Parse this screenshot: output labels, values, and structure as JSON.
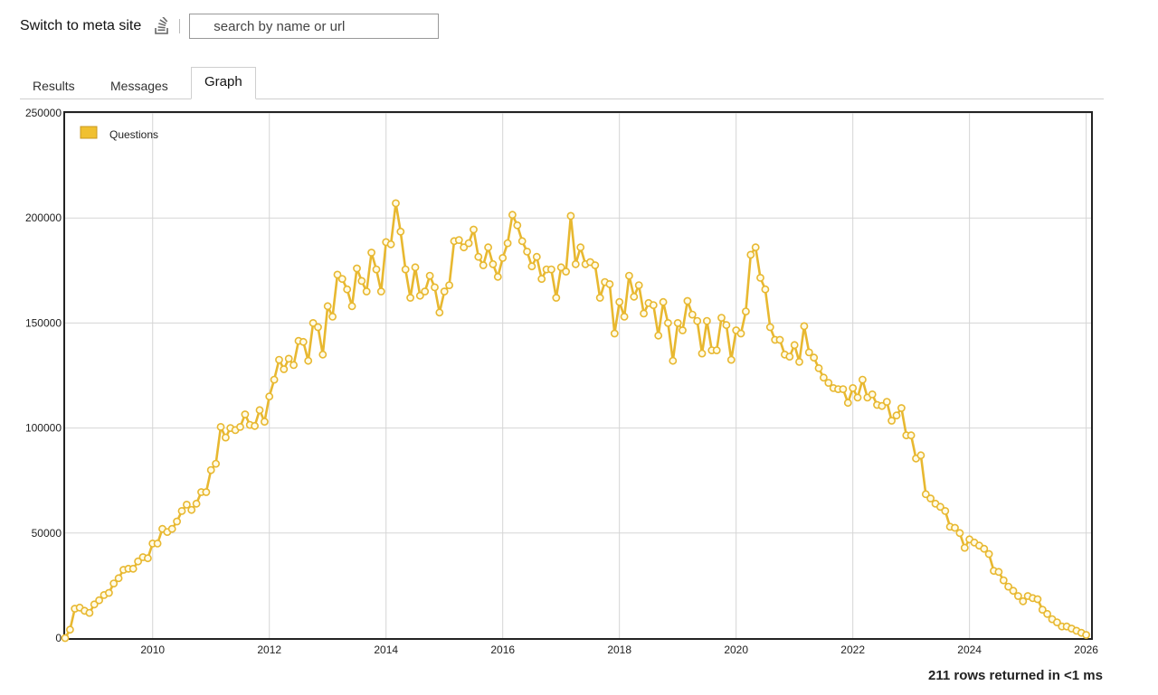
{
  "header": {
    "meta_link": "Switch to meta site",
    "search_placeholder": "search by name or url"
  },
  "tabs": [
    {
      "label": "Results"
    },
    {
      "label": "Messages"
    },
    {
      "label": "Graph",
      "active": true
    }
  ],
  "footer": {
    "status": "211 rows returned in <1 ms"
  },
  "colors": {
    "series": "#e8b830",
    "grid": "#d8d8d8",
    "frame": "#222222"
  },
  "chart_data": {
    "type": "line",
    "title": "",
    "xlabel": "",
    "ylabel": "",
    "x_ticks": [
      "2010",
      "2012",
      "2014",
      "2016",
      "2018",
      "2020",
      "2022",
      "2024",
      "2026"
    ],
    "y_ticks": [
      "0",
      "50000",
      "100000",
      "150000",
      "200000",
      "250000"
    ],
    "xlim": [
      "2008-07",
      "2026-02"
    ],
    "ylim": [
      0,
      250000
    ],
    "grid": true,
    "legend": "top-left",
    "series": [
      {
        "name": "Questions",
        "x": [
          "2008-07",
          "2008-08",
          "2008-09",
          "2008-10",
          "2008-11",
          "2008-12",
          "2009-01",
          "2009-02",
          "2009-03",
          "2009-04",
          "2009-05",
          "2009-06",
          "2009-07",
          "2009-08",
          "2009-09",
          "2009-10",
          "2009-11",
          "2009-12",
          "2010-01",
          "2010-02",
          "2010-03",
          "2010-04",
          "2010-05",
          "2010-06",
          "2010-07",
          "2010-08",
          "2010-09",
          "2010-10",
          "2010-11",
          "2010-12",
          "2011-01",
          "2011-02",
          "2011-03",
          "2011-04",
          "2011-05",
          "2011-06",
          "2011-07",
          "2011-08",
          "2011-09",
          "2011-10",
          "2011-11",
          "2011-12",
          "2012-01",
          "2012-02",
          "2012-03",
          "2012-04",
          "2012-05",
          "2012-06",
          "2012-07",
          "2012-08",
          "2012-09",
          "2012-10",
          "2012-11",
          "2012-12",
          "2013-01",
          "2013-02",
          "2013-03",
          "2013-04",
          "2013-05",
          "2013-06",
          "2013-07",
          "2013-08",
          "2013-09",
          "2013-10",
          "2013-11",
          "2013-12",
          "2014-01",
          "2014-02",
          "2014-03",
          "2014-04",
          "2014-05",
          "2014-06",
          "2014-07",
          "2014-08",
          "2014-09",
          "2014-10",
          "2014-11",
          "2014-12",
          "2015-01",
          "2015-02",
          "2015-03",
          "2015-04",
          "2015-05",
          "2015-06",
          "2015-07",
          "2015-08",
          "2015-09",
          "2015-10",
          "2015-11",
          "2015-12",
          "2016-01",
          "2016-02",
          "2016-03",
          "2016-04",
          "2016-05",
          "2016-06",
          "2016-07",
          "2016-08",
          "2016-09",
          "2016-10",
          "2016-11",
          "2016-12",
          "2017-01",
          "2017-02",
          "2017-03",
          "2017-04",
          "2017-05",
          "2017-06",
          "2017-07",
          "2017-08",
          "2017-09",
          "2017-10",
          "2017-11",
          "2017-12",
          "2018-01",
          "2018-02",
          "2018-03",
          "2018-04",
          "2018-05",
          "2018-06",
          "2018-07",
          "2018-08",
          "2018-09",
          "2018-10",
          "2018-11",
          "2018-12",
          "2019-01",
          "2019-02",
          "2019-03",
          "2019-04",
          "2019-05",
          "2019-06",
          "2019-07",
          "2019-08",
          "2019-09",
          "2019-10",
          "2019-11",
          "2019-12",
          "2020-01",
          "2020-02",
          "2020-03",
          "2020-04",
          "2020-05",
          "2020-06",
          "2020-07",
          "2020-08",
          "2020-09",
          "2020-10",
          "2020-11",
          "2020-12",
          "2021-01",
          "2021-02",
          "2021-03",
          "2021-04",
          "2021-05",
          "2021-06",
          "2021-07",
          "2021-08",
          "2021-09",
          "2021-10",
          "2021-11",
          "2021-12",
          "2022-01",
          "2022-02",
          "2022-03",
          "2022-04",
          "2022-05",
          "2022-06",
          "2022-07",
          "2022-08",
          "2022-09",
          "2022-10",
          "2022-11",
          "2022-12",
          "2023-01",
          "2023-02",
          "2023-03",
          "2023-04",
          "2023-05",
          "2023-06",
          "2023-07",
          "2023-08",
          "2023-09",
          "2023-10",
          "2023-11",
          "2023-12",
          "2024-01",
          "2024-02",
          "2024-03",
          "2024-04",
          "2024-05",
          "2024-06",
          "2024-07",
          "2024-08",
          "2024-09",
          "2024-10",
          "2024-11",
          "2024-12",
          "2025-01",
          "2025-02",
          "2025-03",
          "2025-04",
          "2025-05",
          "2025-06",
          "2025-07",
          "2025-08",
          "2025-09",
          "2025-10",
          "2025-11",
          "2025-12",
          "2026-01"
        ],
        "values": [
          0,
          4000,
          14000,
          14500,
          13000,
          12000,
          16000,
          18000,
          20500,
          21500,
          26000,
          28500,
          32500,
          33000,
          33000,
          36500,
          38500,
          38000,
          45000,
          45000,
          52000,
          50500,
          52000,
          55500,
          60500,
          63500,
          61000,
          64000,
          69500,
          69500,
          80000,
          83000,
          100500,
          95500,
          100000,
          99000,
          100500,
          106500,
          101500,
          101000,
          108500,
          103000,
          115000,
          123000,
          132500,
          128000,
          133000,
          130000,
          141500,
          141000,
          132000,
          150000,
          148000,
          135000,
          158000,
          153000,
          173000,
          171000,
          166000,
          158000,
          176000,
          170000,
          165000,
          183500,
          175500,
          165000,
          188500,
          187500,
          207000,
          193500,
          175500,
          162000,
          176500,
          163000,
          165000,
          172500,
          167000,
          155000,
          165000,
          168000,
          189000,
          189500,
          186000,
          188000,
          194500,
          181500,
          177500,
          186000,
          178000,
          172000,
          181000,
          188000,
          201500,
          196500,
          189000,
          184000,
          177000,
          181500,
          171000,
          175500,
          175500,
          162000,
          176500,
          174500,
          201000,
          178000,
          186000,
          178000,
          179000,
          177500,
          162000,
          169500,
          168500,
          145000,
          160000,
          153000,
          172500,
          162500,
          168000,
          154500,
          159500,
          158500,
          144000,
          160000,
          150000,
          132000,
          150000,
          146500,
          160500,
          154000,
          151000,
          135500,
          151000,
          137000,
          137000,
          152500,
          149000,
          132500,
          146500,
          145000,
          155500,
          182500,
          186000,
          171500,
          166000,
          148000,
          142000,
          142000,
          135000,
          134000,
          139500,
          131500,
          148500,
          136000,
          133500,
          128500,
          124000,
          121500,
          119000,
          118500,
          118500,
          112000,
          119000,
          114500,
          123000,
          114500,
          116000,
          111000,
          110500,
          112500,
          103500,
          106000,
          109500,
          96500,
          96500,
          85500,
          87000,
          68500,
          66500,
          64000,
          62500,
          60500,
          53000,
          52500,
          50000,
          43000,
          47000,
          45500,
          44000,
          42500,
          40000,
          32000,
          31500,
          27500,
          24500,
          22500,
          20000,
          17500,
          20000,
          19000,
          18500,
          13500,
          11500,
          9000,
          7500,
          5500,
          5500,
          4500,
          3500,
          2500,
          1500
        ]
      }
    ]
  }
}
